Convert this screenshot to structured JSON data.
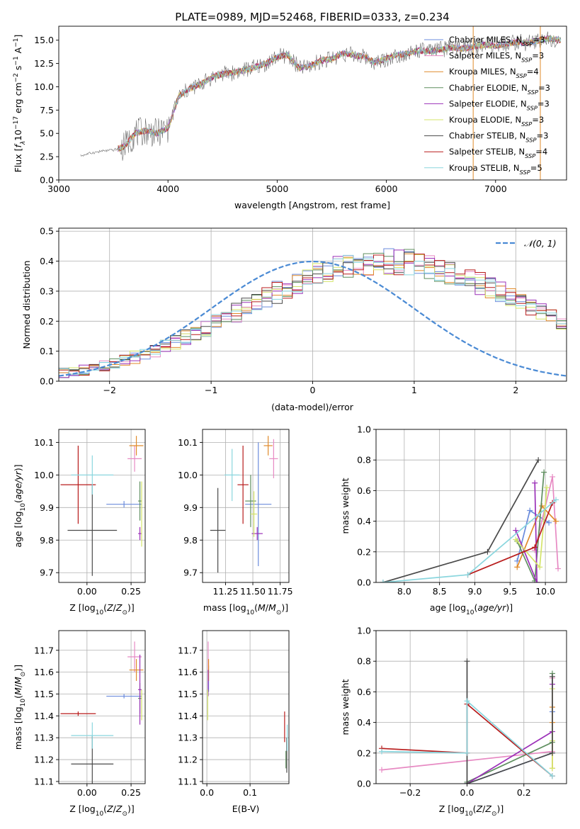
{
  "figure_title": "PLATE=0989, MJD=52468, FIBERID=0333, z=0.234",
  "colors": {
    "s0": "#6b8cdc",
    "s1": "#e78ac3",
    "s2": "#e08a2a",
    "s3": "#5f8f5f",
    "s4": "#9b30b8",
    "s5": "#d4e46a",
    "s6": "#4a4a4a",
    "s7": "#b81c1c",
    "s8": "#8ad6de",
    "normal": "#4a8ad4",
    "grid": "#b0b0b0"
  },
  "chart_data": [
    {
      "id": "spectrum",
      "type": "line",
      "xlabel": "wavelength [Angstrom, rest frame]",
      "ylabel": "Flux [f_λ 10^-17 erg cm^-2 s^-1 A^-1]",
      "xlim": [
        3000,
        7650
      ],
      "ylim": [
        0,
        16.5
      ],
      "xticks": [
        "3000",
        "4000",
        "5000",
        "6000",
        "7000"
      ],
      "yticks": [
        "0.0",
        "2.5",
        "5.0",
        "7.5",
        "10.0",
        "12.5",
        "15.0"
      ],
      "grid": false,
      "legend_position": "top-right",
      "envelope": {
        "wavelength": [
          3200,
          3300,
          3400,
          3500,
          3600,
          3700,
          3800,
          3900,
          4000,
          4100,
          4200,
          4300,
          4400,
          4500,
          4600,
          4700,
          4800,
          4900,
          5000,
          5100,
          5200,
          5300,
          5400,
          5500,
          5600,
          5700,
          5800,
          5900,
          6000,
          6100,
          6200,
          6300,
          6400,
          6500,
          6600,
          6700,
          6800,
          6900,
          7000,
          7100,
          7200,
          7300,
          7400,
          7500,
          7600
        ],
        "flux": [
          2.6,
          2.9,
          3.1,
          3.2,
          3.6,
          5.0,
          5.3,
          5.0,
          5.6,
          9.0,
          9.8,
          10.3,
          11.0,
          11.4,
          11.5,
          11.8,
          12.1,
          12.5,
          13.2,
          13.4,
          12.0,
          12.2,
          12.8,
          13.0,
          13.6,
          13.4,
          13.2,
          12.6,
          13.0,
          13.4,
          13.6,
          13.9,
          13.8,
          14.0,
          14.2,
          14.1,
          14.3,
          14.5,
          14.4,
          14.6,
          14.8,
          14.7,
          15.0,
          15.2,
          15.0
        ]
      },
      "series": [
        {
          "name": "Chabrier MILES, N_SSP=3",
          "color": "s0"
        },
        {
          "name": "Salpeter MILES, N_SSP=3",
          "color": "s1"
        },
        {
          "name": "Kroupa MILES, N_SSP=4",
          "color": "s2"
        },
        {
          "name": "Chabrier ELODIE, N_SSP=3",
          "color": "s3"
        },
        {
          "name": "Salpeter ELODIE, N_SSP=3",
          "color": "s4"
        },
        {
          "name": "Kroupa ELODIE, N_SSP=3",
          "color": "s5"
        },
        {
          "name": "Chabrier STELIB, N_SSP=3",
          "color": "s6"
        },
        {
          "name": "Salpeter STELIB, N_SSP=4",
          "color": "s7"
        },
        {
          "name": "Kroupa STELIB, N_SSP=5",
          "color": "s8"
        }
      ],
      "legend_labels": [
        {
          "pre": "Chabrier MILES, N",
          "post": "=3"
        },
        {
          "pre": "Salpeter MILES, N",
          "post": "=3"
        },
        {
          "pre": "Kroupa MILES, N",
          "post": "=4"
        },
        {
          "pre": "Chabrier ELODIE, N",
          "post": "=3"
        },
        {
          "pre": "Salpeter ELODIE, N",
          "post": "=3"
        },
        {
          "pre": "Kroupa ELODIE, N",
          "post": "=3"
        },
        {
          "pre": "Chabrier STELIB, N",
          "post": "=3"
        },
        {
          "pre": "Salpeter STELIB, N",
          "post": "=4"
        },
        {
          "pre": "Kroupa STELIB, N",
          "post": "=5"
        }
      ],
      "legend_sub": "SSP"
    },
    {
      "id": "residuals",
      "type": "histogram",
      "xlabel": "(data-model)/error",
      "ylabel": "Normed distribution",
      "xlim": [
        -2.5,
        2.5
      ],
      "ylim": [
        0,
        0.51
      ],
      "xticks": [
        "−2",
        "−1",
        "0",
        "1",
        "2"
      ],
      "yticks": [
        "0.0",
        "0.1",
        "0.2",
        "0.3",
        "0.4",
        "0.5"
      ],
      "grid": true,
      "legend_position": "top-right",
      "legend_label": "N(0,1)",
      "bin_width": 0.1,
      "base_profile": [
        0.026,
        0.031,
        0.037,
        0.044,
        0.051,
        0.06,
        0.069,
        0.08,
        0.091,
        0.103,
        0.117,
        0.131,
        0.146,
        0.161,
        0.177,
        0.194,
        0.211,
        0.228,
        0.245,
        0.263,
        0.279,
        0.296,
        0.312,
        0.327,
        0.341,
        0.354,
        0.365,
        0.375,
        0.384,
        0.39,
        0.395,
        0.398,
        0.399,
        0.398,
        0.395,
        0.39,
        0.384,
        0.375,
        0.365,
        0.354,
        0.341,
        0.327,
        0.312,
        0.296,
        0.279,
        0.263,
        0.245,
        0.228,
        0.211,
        0.194
      ]
    },
    {
      "id": "age-vs-Z",
      "type": "errorbar",
      "xlabel": "Z [log10(Z/Z☉)]",
      "ylabel": "age [log10(age/yr)]",
      "xlim": [
        -0.16,
        0.33
      ],
      "ylim": [
        9.67,
        10.14
      ],
      "xticks": [
        "0.00",
        "0.25"
      ],
      "yticks": [
        "9.7",
        "9.8",
        "9.9",
        "10.0",
        "10.1"
      ],
      "grid": true,
      "points": [
        {
          "series": "s0",
          "x": 0.21,
          "xerr": 0.1,
          "y": 9.91,
          "yerr": 0.01
        },
        {
          "series": "s1",
          "x": 0.27,
          "xerr": 0.04,
          "y": 10.05,
          "yerr": 0.04
        },
        {
          "series": "s2",
          "x": 0.28,
          "xerr": 0.04,
          "y": 10.09,
          "yerr": 0.03
        },
        {
          "series": "s3",
          "x": 0.3,
          "xerr": 0.01,
          "y": 9.92,
          "yerr": 0.06
        },
        {
          "series": "s4",
          "x": 0.3,
          "xerr": 0.01,
          "y": 9.82,
          "yerr": 0.02
        },
        {
          "series": "s5",
          "x": 0.31,
          "xerr": 0.0,
          "y": 9.88,
          "yerr": 0.1
        },
        {
          "series": "s6",
          "x": 0.03,
          "xerr": 0.14,
          "y": 9.83,
          "yerr": 0.14
        },
        {
          "series": "s7",
          "x": -0.05,
          "xerr": 0.1,
          "y": 9.97,
          "yerr": 0.12
        },
        {
          "series": "s8",
          "x": 0.03,
          "xerr": 0.12,
          "y": 10.0,
          "yerr": 0.06
        }
      ]
    },
    {
      "id": "age-vs-mass",
      "type": "errorbar",
      "xlabel": "mass [log10(M/M☉)]",
      "ylabel": "",
      "xlim": [
        11.04,
        11.83
      ],
      "ylim": [
        9.67,
        10.14
      ],
      "xticks": [
        "11.25",
        "11.50",
        "11.75"
      ],
      "yticks": [
        "9.7",
        "9.8",
        "9.9",
        "10.0",
        "10.1"
      ],
      "grid": true,
      "points": [
        {
          "series": "s0",
          "x": 11.55,
          "xerr": 0.12,
          "y": 9.91,
          "yerr": 0.19
        },
        {
          "series": "s1",
          "x": 11.69,
          "xerr": 0.04,
          "y": 10.05,
          "yerr": 0.06
        },
        {
          "series": "s2",
          "x": 11.64,
          "xerr": 0.04,
          "y": 10.09,
          "yerr": 0.03
        },
        {
          "series": "s3",
          "x": 11.48,
          "xerr": 0.05,
          "y": 9.92,
          "yerr": 0.08
        },
        {
          "series": "s4",
          "x": 11.54,
          "xerr": 0.05,
          "y": 9.82,
          "yerr": 0.02
        },
        {
          "series": "s5",
          "x": 11.51,
          "xerr": 0.03,
          "y": 9.88,
          "yerr": 0.07
        },
        {
          "series": "s6",
          "x": 11.18,
          "xerr": 0.07,
          "y": 9.83,
          "yerr": 0.13
        },
        {
          "series": "s7",
          "x": 11.41,
          "xerr": 0.05,
          "y": 9.97,
          "yerr": 0.12
        },
        {
          "series": "s8",
          "x": 11.31,
          "xerr": 0.07,
          "y": 10.0,
          "yerr": 0.08
        }
      ]
    },
    {
      "id": "weight-vs-age",
      "type": "line",
      "xlabel": "age [log10(age/yr)]",
      "ylabel": "mass weight",
      "xlim": [
        7.6,
        10.3
      ],
      "ylim": [
        0,
        1
      ],
      "xticks": [
        "8.0",
        "8.5",
        "9.0",
        "9.5",
        "10.0"
      ],
      "yticks": [
        "0.0",
        "0.2",
        "0.4",
        "0.6",
        "0.8",
        "1.0"
      ],
      "grid": true,
      "series": [
        {
          "series": "s0",
          "x": [
            9.6,
            9.78,
            10.05
          ],
          "y": [
            0.14,
            0.47,
            0.39
          ]
        },
        {
          "series": "s1",
          "x": [
            9.85,
            10.1,
            10.18
          ],
          "y": [
            0.21,
            0.69,
            0.09
          ]
        },
        {
          "series": "s2",
          "x": [
            9.6,
            9.95,
            10.15
          ],
          "y": [
            0.1,
            0.5,
            0.4
          ]
        },
        {
          "series": "s3",
          "x": [
            9.6,
            9.85,
            9.98
          ],
          "y": [
            0.27,
            0.01,
            0.72
          ]
        },
        {
          "series": "s4",
          "x": [
            9.58,
            9.88,
            9.85
          ],
          "y": [
            0.34,
            0.0,
            0.65
          ]
        },
        {
          "series": "s5",
          "x": [
            9.58,
            9.92,
            10.02
          ],
          "y": [
            0.28,
            0.1,
            0.62
          ]
        },
        {
          "series": "s6",
          "x": [
            7.7,
            9.18,
            9.9
          ],
          "y": [
            0.0,
            0.2,
            0.8
          ]
        },
        {
          "series": "s7",
          "x": [
            8.9,
            9.85,
            10.1
          ],
          "y": [
            0.05,
            0.23,
            0.52
          ]
        },
        {
          "series": "s8",
          "x": [
            7.7,
            8.9,
            10.15
          ],
          "y": [
            0.0,
            0.05,
            0.54
          ]
        }
      ]
    },
    {
      "id": "mass-vs-Z",
      "type": "errorbar",
      "xlabel": "Z [log10(Z/Z☉)]",
      "ylabel": "mass [log10(M/M☉)]",
      "xlim": [
        -0.16,
        0.33
      ],
      "ylim": [
        11.09,
        11.79
      ],
      "xticks": [
        "0.00",
        "0.25"
      ],
      "yticks": [
        "11.1",
        "11.2",
        "11.3",
        "11.4",
        "11.5",
        "11.6",
        "11.7"
      ],
      "grid": true,
      "points": [
        {
          "series": "s0",
          "x": 0.21,
          "xerr": 0.1,
          "y": 11.49,
          "yerr": 0.01
        },
        {
          "series": "s1",
          "x": 0.27,
          "xerr": 0.04,
          "y": 11.67,
          "yerr": 0.07
        },
        {
          "series": "s2",
          "x": 0.28,
          "xerr": 0.04,
          "y": 11.61,
          "yerr": 0.05
        },
        {
          "series": "s3",
          "x": 0.3,
          "xerr": 0.01,
          "y": 11.48,
          "yerr": 0.07
        },
        {
          "series": "s4",
          "x": 0.3,
          "xerr": 0.01,
          "y": 11.52,
          "yerr": 0.16
        },
        {
          "series": "s5",
          "x": 0.31,
          "xerr": 0.0,
          "y": 11.45,
          "yerr": 0.07
        },
        {
          "series": "s6",
          "x": 0.03,
          "xerr": 0.12,
          "y": 11.18,
          "yerr": 0.13
        },
        {
          "series": "s7",
          "x": -0.05,
          "xerr": 0.1,
          "y": 11.41,
          "yerr": 0.01
        },
        {
          "series": "s8",
          "x": 0.03,
          "xerr": 0.12,
          "y": 11.31,
          "yerr": 0.06
        }
      ]
    },
    {
      "id": "mass-vs-ebv",
      "type": "errorbar",
      "xlabel": "E(B-V)",
      "ylabel": "",
      "xlim": [
        -0.01,
        0.19
      ],
      "ylim": [
        11.09,
        11.79
      ],
      "xticks": [
        "0.0",
        "0.1"
      ],
      "yticks": [
        "11.1",
        "11.2",
        "11.3",
        "11.4",
        "11.5",
        "11.6",
        "11.7"
      ],
      "grid": true,
      "points": [
        {
          "series": "s0",
          "x": 0.004,
          "xerr": 0,
          "y": 11.57,
          "yerr": 0.06
        },
        {
          "series": "s1",
          "x": 0.003,
          "xerr": 0,
          "y": 11.67,
          "yerr": 0.07
        },
        {
          "series": "s2",
          "x": 0.004,
          "xerr": 0,
          "y": 11.61,
          "yerr": 0.05
        },
        {
          "series": "s3",
          "x": 0.183,
          "xerr": 0,
          "y": 11.2,
          "yerr": 0.04
        },
        {
          "series": "s4",
          "x": 0.003,
          "xerr": 0,
          "y": 11.55,
          "yerr": 0.06
        },
        {
          "series": "s5",
          "x": 0.002,
          "xerr": 0,
          "y": 11.45,
          "yerr": 0.07
        },
        {
          "series": "s6",
          "x": 0.185,
          "xerr": 0,
          "y": 11.22,
          "yerr": 0.08
        },
        {
          "series": "s7",
          "x": 0.18,
          "xerr": 0,
          "y": 11.35,
          "yerr": 0.07
        },
        {
          "series": "s8",
          "x": 0.186,
          "xerr": 0,
          "y": 11.3,
          "yerr": 0.06
        }
      ]
    },
    {
      "id": "weight-vs-Z",
      "type": "line",
      "xlabel": "Z [log10(Z/Z☉)]",
      "ylabel": "mass weight",
      "xlim": [
        -0.32,
        0.35
      ],
      "ylim": [
        0,
        1
      ],
      "xticks": [
        "−0.2",
        "0.0",
        "0.2"
      ],
      "yticks": [
        "0.0",
        "0.2",
        "0.4",
        "0.6",
        "0.8",
        "1.0"
      ],
      "grid": true,
      "series": [
        {
          "series": "s0",
          "x": [
            0.0,
            0.3,
            0.3
          ],
          "y": [
            0.0,
            0.2,
            0.47
          ]
        },
        {
          "series": "s1",
          "x": [
            -0.3,
            0.3,
            0.3
          ],
          "y": [
            0.09,
            0.21,
            0.69
          ]
        },
        {
          "series": "s2",
          "x": [
            0.3,
            0.3,
            0.3
          ],
          "y": [
            0.1,
            0.4,
            0.5
          ]
        },
        {
          "series": "s3",
          "x": [
            0.0,
            0.3,
            0.3
          ],
          "y": [
            0.01,
            0.27,
            0.72
          ]
        },
        {
          "series": "s4",
          "x": [
            0.0,
            0.3,
            0.3
          ],
          "y": [
            0.0,
            0.34,
            0.65
          ]
        },
        {
          "series": "s5",
          "x": [
            0.3,
            0.3,
            0.3
          ],
          "y": [
            0.1,
            0.28,
            0.62
          ]
        },
        {
          "series": "s6",
          "x": [
            0.0,
            0.0,
            0.3,
            0.3
          ],
          "y": [
            0.8,
            0.0,
            0.2,
            0.7
          ]
        },
        {
          "series": "s7",
          "x": [
            -0.3,
            0.0,
            0.0,
            0.3
          ],
          "y": [
            0.23,
            0.2,
            0.52,
            0.05
          ]
        },
        {
          "series": "s8",
          "x": [
            -0.3,
            0.0,
            0.0,
            0.3
          ],
          "y": [
            0.21,
            0.2,
            0.54,
            0.05
          ]
        }
      ]
    }
  ]
}
